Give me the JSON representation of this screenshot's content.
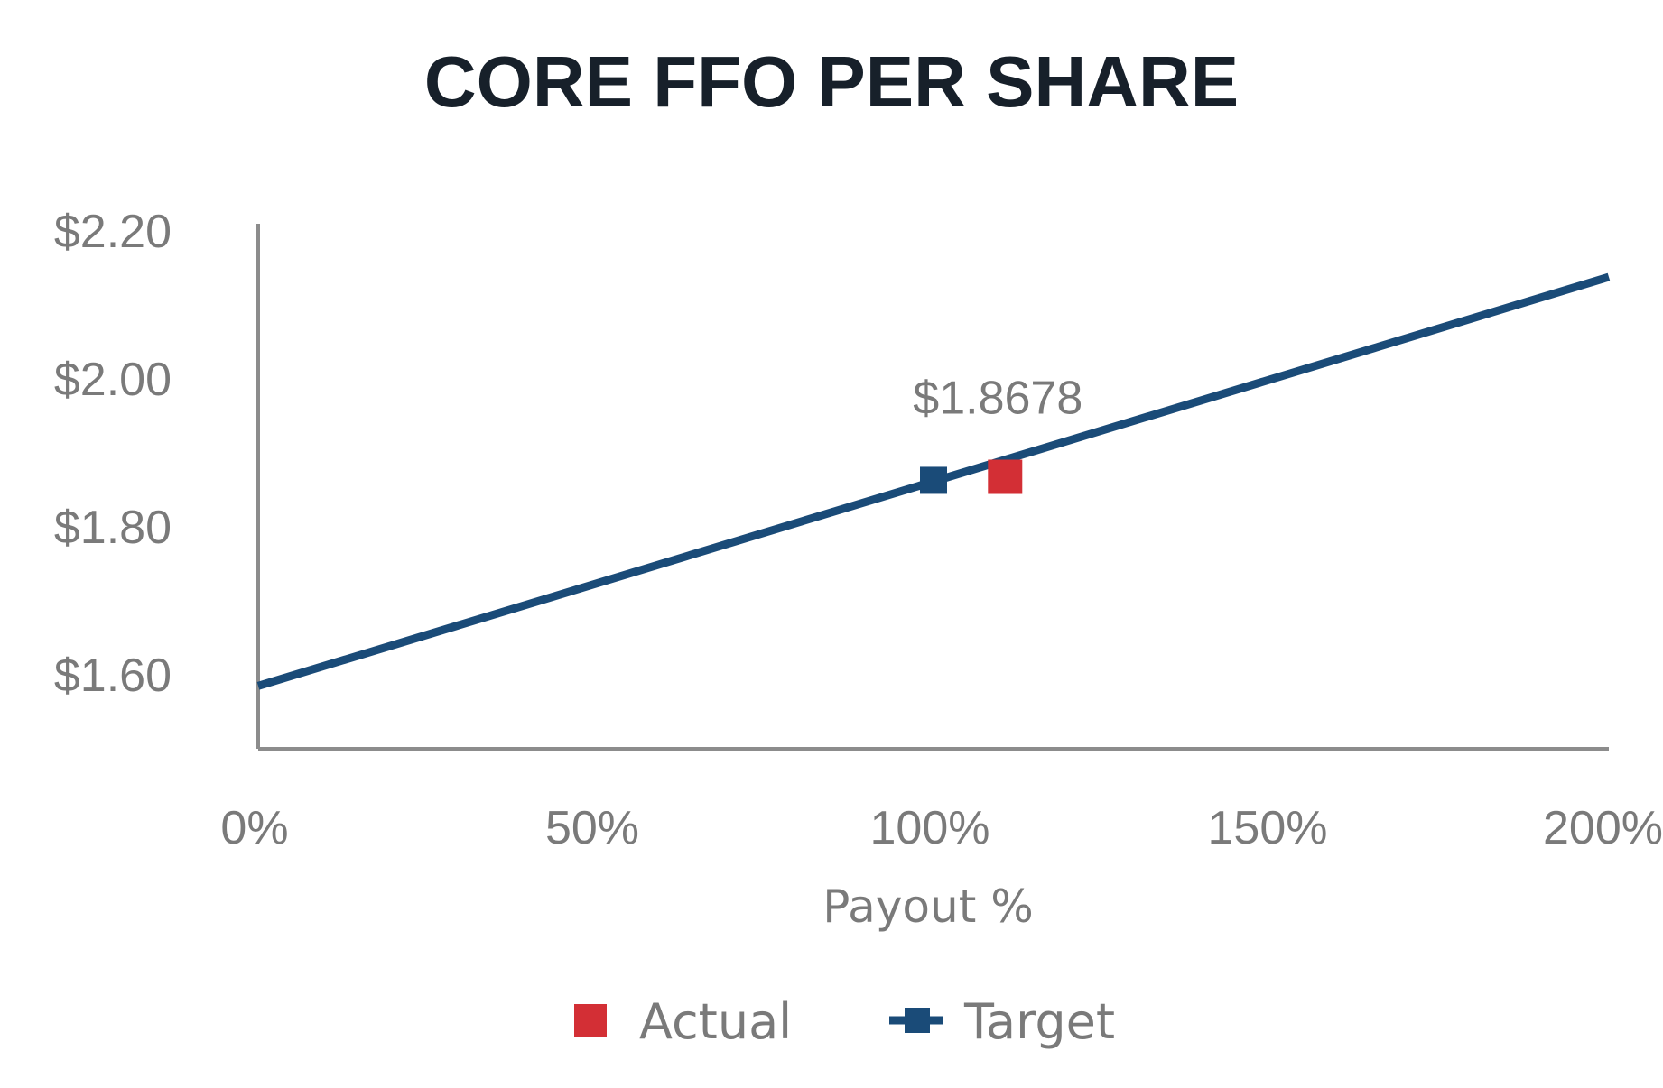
{
  "chart_data": {
    "type": "line",
    "title": "CORE FFO PER SHARE",
    "xlabel": "Payout %",
    "ylabel": "",
    "x_ticks": [
      "0%",
      "50%",
      "100%",
      "150%",
      "200%"
    ],
    "y_ticks": [
      "$1.60",
      "$1.80",
      "$2.00",
      "$2.20"
    ],
    "xlim": [
      0,
      200
    ],
    "ylim": [
      1.5,
      2.21
    ],
    "grid": false,
    "legend": "bottom",
    "series": [
      {
        "name": "Target",
        "color": "#1a4b78",
        "x": [
          0,
          200
        ],
        "y": [
          1.585,
          2.138
        ],
        "marker": {
          "x": 100,
          "y": 1.863
        }
      },
      {
        "name": "Actual",
        "color": "#d32f35",
        "x": [
          110.6
        ],
        "y": [
          1.8678
        ],
        "label": "$1.8678"
      }
    ],
    "colors": {
      "title": "#17202a",
      "tick": "#7a7a7a",
      "axis": "#8c8c8c"
    }
  }
}
